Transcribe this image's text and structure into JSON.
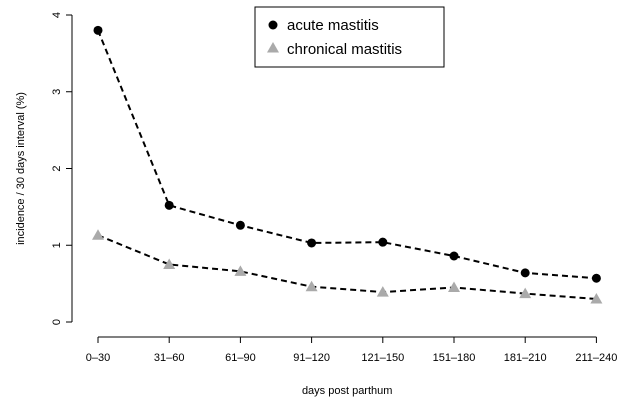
{
  "chart_data": {
    "type": "line",
    "categories": [
      "0–30",
      "31–60",
      "61–90",
      "91–120",
      "121–150",
      "151–180",
      "181–210",
      "211–240"
    ],
    "xlabel": "days post parthum",
    "ylabel": "incidence / 30 days interval (%)",
    "ylim": [
      0,
      4
    ],
    "yticks": [
      "0",
      "1",
      "2",
      "3",
      "4"
    ],
    "grid": false,
    "legend_position": "top-center",
    "series": [
      {
        "name": "acute mastitis",
        "marker": "circle",
        "color": "#000000",
        "values": [
          3.8,
          1.52,
          1.26,
          1.03,
          1.04,
          0.86,
          0.64,
          0.57
        ]
      },
      {
        "name": "chronical mastitis",
        "marker": "triangle",
        "color": "#aaaaaa",
        "values": [
          1.13,
          0.75,
          0.66,
          0.46,
          0.39,
          0.45,
          0.37,
          0.3
        ]
      }
    ]
  }
}
